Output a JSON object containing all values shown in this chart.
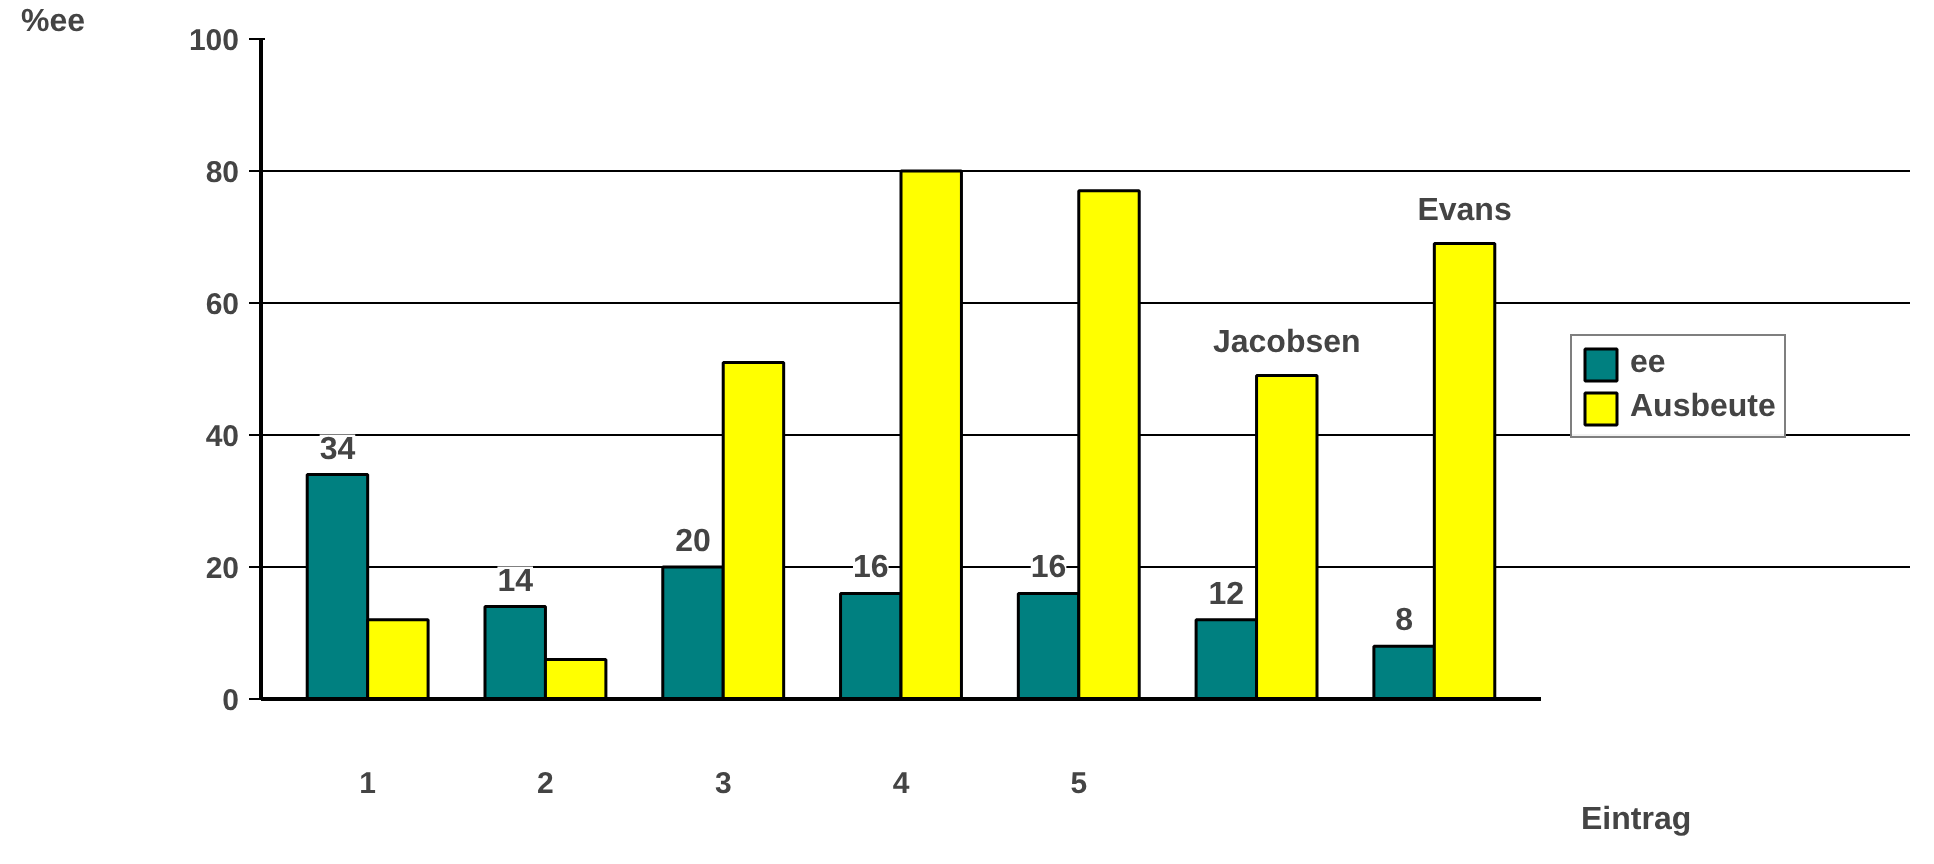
{
  "chart_data": {
    "type": "bar",
    "categories": [
      "1",
      "2",
      "3",
      "4",
      "5",
      null,
      null
    ],
    "series": [
      {
        "name": "ee",
        "color": "#008080",
        "values": [
          34,
          14,
          20,
          16,
          16,
          12,
          8
        ],
        "value_labels": [
          "34",
          "14",
          "20",
          "16",
          "16",
          "12",
          "8"
        ]
      },
      {
        "name": "Ausbeute",
        "color": "#ffff00",
        "values": [
          12,
          6,
          51,
          80,
          77,
          49,
          69
        ],
        "value_labels": [
          null,
          null,
          null,
          null,
          null,
          "Jacobsen",
          "Evans"
        ]
      }
    ],
    "ylabel": "%ee",
    "xlabel": "Eintrag",
    "ylim": [
      0,
      100
    ],
    "yticks": [
      0,
      20,
      40,
      60,
      80,
      100
    ],
    "grid": "y",
    "legend": "right"
  }
}
